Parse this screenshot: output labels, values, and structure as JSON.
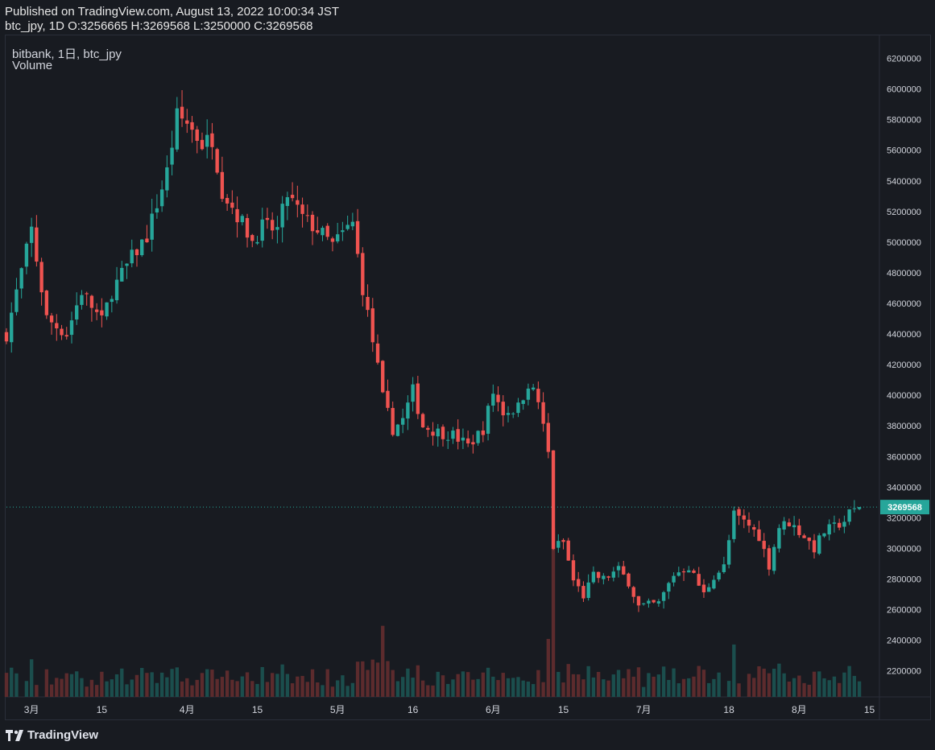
{
  "header": {
    "published_line": "Published on TradingView.com, August 13, 2022 10:00:34 JST",
    "ohlc_line": "btc_jpy, 1D O:3256665 H:3269568 L:3250000 C:3269568"
  },
  "legend": {
    "symbol_line": "bitbank, 1日, btc_jpy",
    "volume_label": "Volume"
  },
  "branding": {
    "logo_text": "TradingView",
    "logo_icon": "tradingview-logo-icon"
  },
  "colors": {
    "background": "#181b21",
    "up": "#26a69a",
    "down": "#ef5350",
    "up_volume": "#1b4e4d",
    "down_volume": "#5c2b2d",
    "price_line": "#26a69a",
    "axis_border": "#2a2e39"
  },
  "chart_data": {
    "type": "candlestick",
    "interval": "1D",
    "symbol": "btc_jpy",
    "exchange": "bitbank",
    "period": [
      "2022-02-24",
      "2022-08-13"
    ],
    "last_price": "3269568",
    "last_ohlc": {
      "open": 3256665,
      "high": 3269568,
      "low": 3250000,
      "close": 3269568
    },
    "y_axis": {
      "range": [
        2030000,
        6350000
      ],
      "ticks": [
        "6200000",
        "6000000",
        "5800000",
        "5600000",
        "5400000",
        "5200000",
        "5000000",
        "4800000",
        "4600000",
        "4400000",
        "4200000",
        "4000000",
        "3800000",
        "3600000",
        "3400000",
        "3200000",
        "3000000",
        "2800000",
        "2600000",
        "2400000",
        "2200000"
      ],
      "position": "right"
    },
    "x_axis": {
      "ticks": [
        {
          "label": "3月",
          "date": "2022-03-01"
        },
        {
          "label": "15",
          "date": "2022-03-15"
        },
        {
          "label": "4月",
          "date": "2022-04-01"
        },
        {
          "label": "15",
          "date": "2022-04-15"
        },
        {
          "label": "5月",
          "date": "2022-05-01"
        },
        {
          "label": "16",
          "date": "2022-05-16"
        },
        {
          "label": "6月",
          "date": "2022-06-01"
        },
        {
          "label": "15",
          "date": "2022-06-15"
        },
        {
          "label": "7月",
          "date": "2022-07-01"
        },
        {
          "label": "18",
          "date": "2022-07-18"
        },
        {
          "label": "8月",
          "date": "2022-08-01"
        },
        {
          "label": "15",
          "date": "2022-08-15"
        }
      ]
    },
    "grid": false,
    "close_path": [
      {
        "date": "2022-02-24",
        "close": 4400000
      },
      {
        "date": "2022-03-01",
        "close": 5080000
      },
      {
        "date": "2022-03-04",
        "close": 4500000
      },
      {
        "date": "2022-03-08",
        "close": 4400000
      },
      {
        "date": "2022-03-11",
        "close": 4680000
      },
      {
        "date": "2022-03-15",
        "close": 4480000
      },
      {
        "date": "2022-03-17",
        "close": 4680000
      },
      {
        "date": "2022-03-21",
        "close": 4900000
      },
      {
        "date": "2022-03-24",
        "close": 5040000
      },
      {
        "date": "2022-03-28",
        "close": 5460000
      },
      {
        "date": "2022-03-30",
        "close": 5820000
      },
      {
        "date": "2022-04-01",
        "close": 5780000
      },
      {
        "date": "2022-04-04",
        "close": 5640000
      },
      {
        "date": "2022-04-06",
        "close": 5680000
      },
      {
        "date": "2022-04-08",
        "close": 5340000
      },
      {
        "date": "2022-04-11",
        "close": 5180000
      },
      {
        "date": "2022-04-14",
        "close": 5010000
      },
      {
        "date": "2022-04-16",
        "close": 5100000
      },
      {
        "date": "2022-04-19",
        "close": 5080000
      },
      {
        "date": "2022-04-21",
        "close": 5310000
      },
      {
        "date": "2022-04-24",
        "close": 5160000
      },
      {
        "date": "2022-04-27",
        "close": 5080000
      },
      {
        "date": "2022-04-30",
        "close": 4980000
      },
      {
        "date": "2022-05-03",
        "close": 5090000
      },
      {
        "date": "2022-05-04",
        "close": 5120000
      },
      {
        "date": "2022-05-06",
        "close": 4700000
      },
      {
        "date": "2022-05-09",
        "close": 4180000
      },
      {
        "date": "2022-05-10",
        "close": 3980000
      },
      {
        "date": "2022-05-12",
        "close": 3780000
      },
      {
        "date": "2022-05-14",
        "close": 3840000
      },
      {
        "date": "2022-05-16",
        "close": 4030000
      },
      {
        "date": "2022-05-18",
        "close": 3800000
      },
      {
        "date": "2022-05-21",
        "close": 3760000
      },
      {
        "date": "2022-05-24",
        "close": 3740000
      },
      {
        "date": "2022-05-27",
        "close": 3670000
      },
      {
        "date": "2022-05-30",
        "close": 3780000
      },
      {
        "date": "2022-06-01",
        "close": 4020000
      },
      {
        "date": "2022-06-03",
        "close": 3890000
      },
      {
        "date": "2022-06-06",
        "close": 3920000
      },
      {
        "date": "2022-06-08",
        "close": 4080000
      },
      {
        "date": "2022-06-10",
        "close": 3960000
      },
      {
        "date": "2022-06-12",
        "close": 3620000
      },
      {
        "date": "2022-06-13",
        "close": 3010000
      },
      {
        "date": "2022-06-15",
        "close": 3040000
      },
      {
        "date": "2022-06-17",
        "close": 2790000
      },
      {
        "date": "2022-06-19",
        "close": 2690000
      },
      {
        "date": "2022-06-21",
        "close": 2820000
      },
      {
        "date": "2022-06-23",
        "close": 2800000
      },
      {
        "date": "2022-06-26",
        "close": 2860000
      },
      {
        "date": "2022-06-28",
        "close": 2780000
      },
      {
        "date": "2022-06-30",
        "close": 2620000
      },
      {
        "date": "2022-07-04",
        "close": 2640000
      },
      {
        "date": "2022-07-07",
        "close": 2830000
      },
      {
        "date": "2022-07-10",
        "close": 2880000
      },
      {
        "date": "2022-07-13",
        "close": 2700000
      },
      {
        "date": "2022-07-15",
        "close": 2820000
      },
      {
        "date": "2022-07-17",
        "close": 2880000
      },
      {
        "date": "2022-07-19",
        "close": 3220000
      },
      {
        "date": "2022-07-22",
        "close": 3150000
      },
      {
        "date": "2022-07-24",
        "close": 3080000
      },
      {
        "date": "2022-07-26",
        "close": 2890000
      },
      {
        "date": "2022-07-28",
        "close": 3140000
      },
      {
        "date": "2022-07-30",
        "close": 3170000
      },
      {
        "date": "2022-08-02",
        "close": 3080000
      },
      {
        "date": "2022-08-04",
        "close": 3000000
      },
      {
        "date": "2022-08-06",
        "close": 3110000
      },
      {
        "date": "2022-08-08",
        "close": 3140000
      },
      {
        "date": "2022-08-10",
        "close": 3180000
      },
      {
        "date": "2022-08-11",
        "close": 3230000
      },
      {
        "date": "2022-08-13",
        "close": 3269568
      }
    ],
    "volume": "relative bars, up/down coloured, rising sharply around 2022-05-10 and 2022-06-13"
  }
}
